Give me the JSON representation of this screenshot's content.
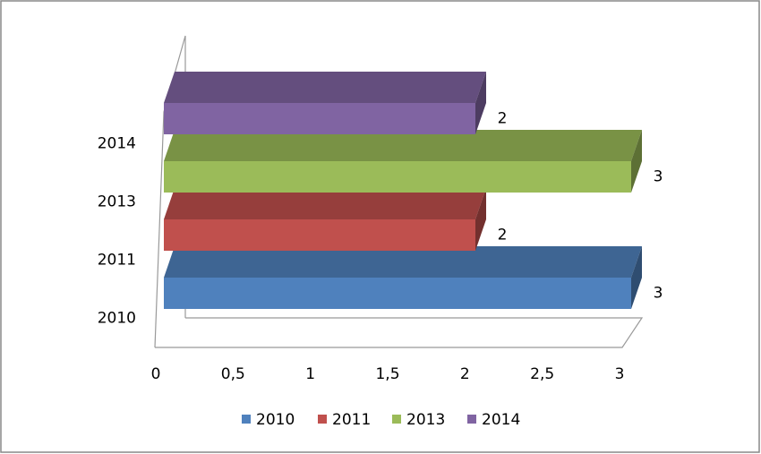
{
  "chart_data": {
    "type": "bar3d_horizontal",
    "categories": [
      "2010",
      "2011",
      "2013",
      "2014"
    ],
    "values": [
      3,
      2,
      3,
      2
    ],
    "colors": [
      "#4f81bd",
      "#c0504d",
      "#9bbb59",
      "#8064a2"
    ],
    "xlim": [
      0,
      3
    ],
    "xticks": [
      0,
      {
        "value": 0.5,
        "label": "0,5"
      },
      1,
      {
        "value": 1.5,
        "label": "1,5"
      },
      2,
      {
        "value": 2.5,
        "label": "2,5"
      },
      3
    ],
    "legend": "bottom"
  }
}
